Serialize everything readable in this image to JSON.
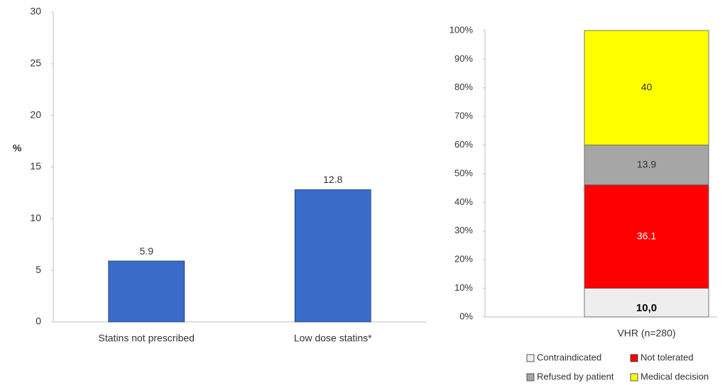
{
  "chart_data": [
    {
      "type": "bar",
      "y_label": "%",
      "categories": [
        "Statins not prescribed",
        "Low dose statins*"
      ],
      "values": [
        5.9,
        12.8
      ],
      "color": "#3a6bc8",
      "ylim": [
        0,
        30
      ],
      "yticks": [
        0,
        5,
        10,
        15,
        20,
        25,
        30
      ],
      "grid": false
    },
    {
      "type": "stacked_bar",
      "categories": [
        "VHR (n=280)"
      ],
      "series": [
        {
          "name": "Contraindicated",
          "color": "#eeeeee",
          "label_color": "#000000",
          "values": [
            10
          ],
          "value_labels": [
            "10,0"
          ]
        },
        {
          "name": "Not tolerated",
          "color": "#ff0000",
          "label_color": "#ffffff",
          "values": [
            36.1
          ]
        },
        {
          "name": "Refused by patient",
          "color": "#a6a6a6",
          "label_color": "#333333",
          "values": [
            13.9
          ]
        },
        {
          "name": "Medical decision",
          "color": "#ffff00",
          "label_color": "#333333",
          "values": [
            40
          ]
        }
      ],
      "ylim": [
        0,
        100
      ],
      "yticks": [
        {
          "value": 0,
          "label": "0%"
        },
        {
          "value": 10,
          "label": "10%"
        },
        {
          "value": 20,
          "label": "20%"
        },
        {
          "value": 30,
          "label": "30%"
        },
        {
          "value": 40,
          "label": "40%"
        },
        {
          "value": 50,
          "label": "50%"
        },
        {
          "value": 60,
          "label": "60%"
        },
        {
          "value": 70,
          "label": "70%"
        },
        {
          "value": 80,
          "label": "80%"
        },
        {
          "value": 90,
          "label": "90%"
        },
        {
          "value": 100,
          "label": "100%"
        }
      ],
      "grid": false,
      "legend": "bottom"
    }
  ]
}
